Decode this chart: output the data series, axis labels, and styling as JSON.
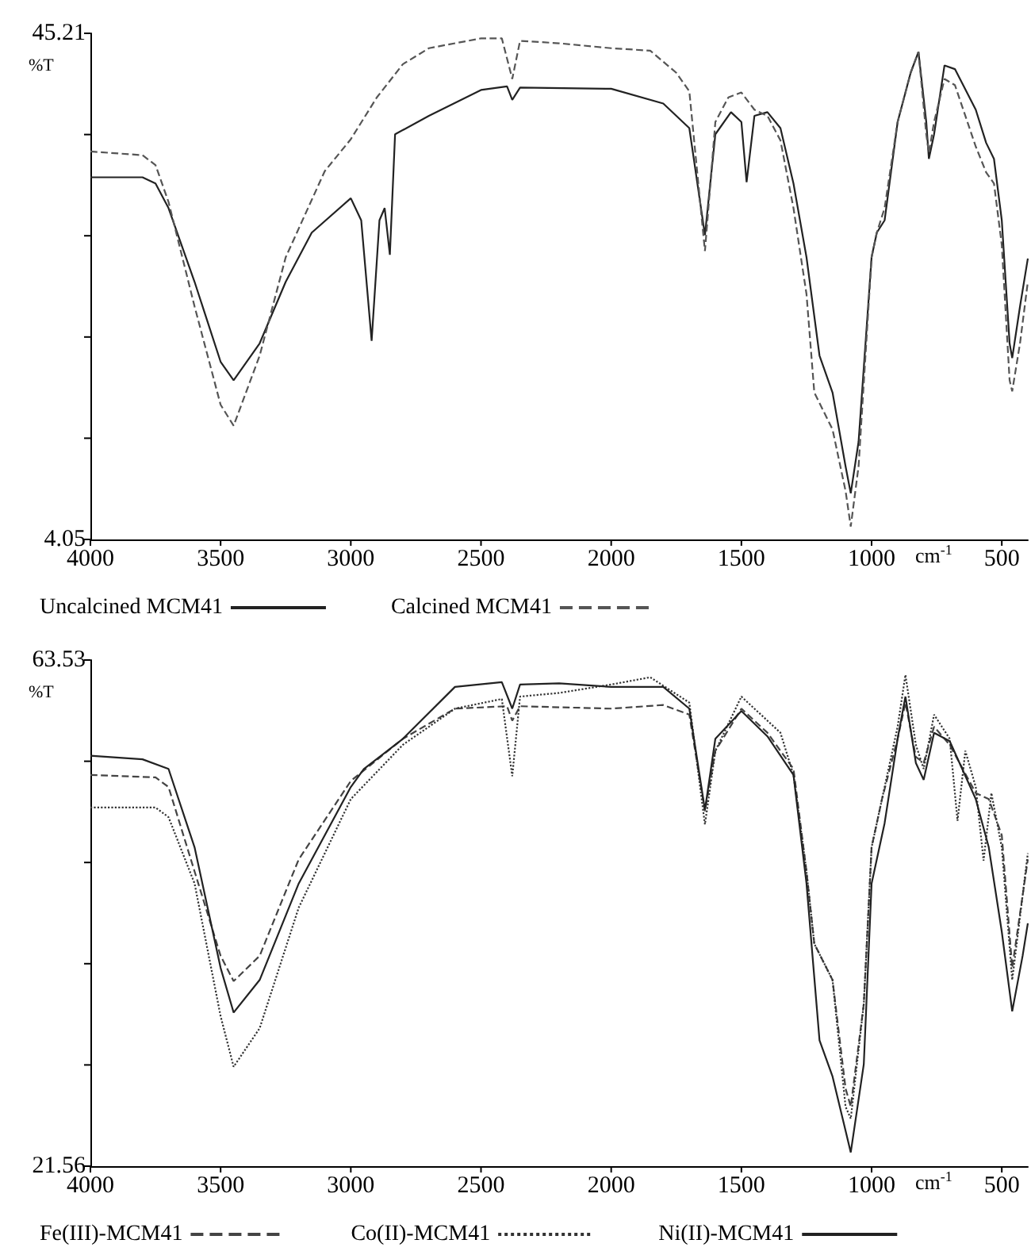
{
  "chart_data": [
    {
      "type": "line",
      "xlabel": "cm$^{-1}$",
      "ylabel": "%T",
      "xlim": [
        4000,
        400
      ],
      "ylim": [
        4.05,
        45.21
      ],
      "xticks": [
        4000,
        3500,
        3000,
        2500,
        2000,
        1500,
        1000,
        500
      ],
      "yticks": [
        4.05,
        {
          "value": 12.282,
          "label": null
        },
        {
          "value": 20.514,
          "label": null
        },
        {
          "value": 28.746,
          "label": null
        },
        {
          "value": 36.978,
          "label": null
        },
        45.21
      ],
      "grid": false,
      "legend": "bottom",
      "marker": "none",
      "series": [
        {
          "name": "Uncalcined MCM41",
          "color": "#222222",
          "line_style": "solid",
          "x": [
            4000,
            3800,
            3750,
            3700,
            3600,
            3500,
            3450,
            3350,
            3250,
            3150,
            3000,
            2960,
            2920,
            2890,
            2870,
            2850,
            2830,
            2700,
            2500,
            2400,
            2380,
            2350,
            2000,
            1800,
            1700,
            1640,
            1600,
            1540,
            1500,
            1480,
            1450,
            1400,
            1350,
            1300,
            1250,
            1200,
            1150,
            1100,
            1080,
            1050,
            1000,
            980,
            950,
            900,
            850,
            820,
            790,
            780,
            760,
            720,
            680,
            600,
            560,
            530,
            500,
            470,
            460,
            430,
            400
          ],
          "values": [
            33.5,
            33.5,
            33.0,
            31,
            25,
            18.5,
            17.0,
            20,
            25,
            29,
            31.8,
            30,
            20.2,
            30,
            31,
            27.2,
            37,
            38.5,
            40.6,
            40.9,
            39.8,
            40.8,
            40.7,
            39.5,
            37.5,
            28.8,
            37,
            38.8,
            38,
            33.1,
            38.5,
            38.8,
            37.5,
            33,
            27,
            19,
            16,
            10,
            7.8,
            12,
            27,
            29,
            30,
            38,
            42,
            43.7,
            38,
            35.0,
            37,
            42.6,
            42.3,
            39,
            36.3,
            35,
            30,
            20,
            18.8,
            23,
            26.9
          ]
        },
        {
          "name": "Calcined MCM41",
          "color": "#555555",
          "line_style": "dashed",
          "x": [
            4000,
            3800,
            3750,
            3700,
            3600,
            3500,
            3450,
            3350,
            3250,
            3100,
            3000,
            2900,
            2800,
            2700,
            2500,
            2420,
            2380,
            2350,
            2200,
            2000,
            1850,
            1750,
            1700,
            1640,
            1600,
            1550,
            1500,
            1450,
            1400,
            1350,
            1300,
            1250,
            1220,
            1150,
            1100,
            1080,
            1050,
            1000,
            980,
            950,
            900,
            850,
            820,
            790,
            780,
            760,
            720,
            680,
            600,
            560,
            530,
            500,
            470,
            460,
            430,
            400
          ],
          "values": [
            35.6,
            35.3,
            34.5,
            31.5,
            23,
            15,
            13.3,
            19,
            27,
            34,
            36.6,
            40,
            42.7,
            44,
            44.8,
            44.8,
            41.5,
            44.6,
            44.4,
            44.0,
            43.8,
            42,
            40.5,
            27.5,
            38,
            40,
            40.4,
            39,
            38.5,
            36.5,
            31,
            24,
            16,
            13,
            8,
            5.1,
            10,
            27,
            29,
            31,
            38,
            42,
            43.7,
            37,
            35.5,
            38,
            41.5,
            41,
            36,
            33.9,
            33,
            28,
            17,
            16.1,
            20,
            25
          ]
        }
      ]
    },
    {
      "type": "line",
      "xlabel": "cm$^{-1}$",
      "ylabel": "%T",
      "xlim": [
        4000,
        400
      ],
      "ylim": [
        21.56,
        63.53
      ],
      "xticks": [
        4000,
        3500,
        3000,
        2500,
        2000,
        1500,
        1000,
        500
      ],
      "yticks": [
        21.56,
        {
          "value": 29.954,
          "label": null
        },
        {
          "value": 38.348,
          "label": null
        },
        {
          "value": 46.742,
          "label": null
        },
        {
          "value": 55.136,
          "label": null
        },
        63.53
      ],
      "grid": false,
      "legend": "bottom",
      "marker": "none",
      "series": [
        {
          "name": "Fe(III)-MCM41",
          "color": "#444444",
          "line_style": "dashed",
          "x": [
            4000,
            3750,
            3700,
            3600,
            3500,
            3450,
            3350,
            3200,
            3000,
            2800,
            2600,
            2400,
            2380,
            2350,
            2000,
            1800,
            1700,
            1640,
            1600,
            1500,
            1400,
            1300,
            1250,
            1220,
            1150,
            1100,
            1080,
            1030,
            1000,
            960,
            900,
            870,
            830,
            800,
            760,
            700,
            600,
            550,
            500,
            460,
            420,
            400
          ],
          "values": [
            54.0,
            53.8,
            53,
            46,
            39,
            36.9,
            39,
            47,
            53.5,
            57,
            59.5,
            59.7,
            58.5,
            59.7,
            59.5,
            59.8,
            59,
            51.0,
            56,
            59.5,
            57.5,
            54.5,
            46,
            40,
            37,
            28,
            26.5,
            35,
            48,
            52,
            57,
            60,
            55.5,
            55,
            58,
            56.5,
            52.5,
            52,
            49,
            38,
            44,
            47
          ]
        },
        {
          "name": "Co(II)-MCM41",
          "color": "#333333",
          "line_style": "dotted",
          "x": [
            4000,
            3750,
            3700,
            3600,
            3500,
            3450,
            3350,
            3200,
            3000,
            2800,
            2600,
            2420,
            2380,
            2350,
            2200,
            2000,
            1850,
            1700,
            1640,
            1600,
            1500,
            1400,
            1350,
            1300,
            1250,
            1220,
            1150,
            1100,
            1080,
            1030,
            1000,
            960,
            900,
            870,
            830,
            800,
            760,
            700,
            670,
            640,
            600,
            570,
            540,
            500,
            460,
            420,
            400
          ],
          "values": [
            51.3,
            51.3,
            50.5,
            45,
            34,
            29.8,
            33,
            43,
            52,
            56.5,
            59.5,
            60.3,
            53.9,
            60.5,
            60.8,
            61.5,
            62.1,
            60,
            49.9,
            56,
            60.5,
            58.5,
            57.5,
            54,
            46,
            40,
            37,
            26.5,
            25.5,
            35,
            48,
            52,
            58,
            62.3,
            56.5,
            54.5,
            59,
            57,
            50.2,
            56,
            53,
            46.9,
            52.5,
            48,
            37,
            44,
            47.5
          ]
        },
        {
          "name": "Ni(II)-MCM41",
          "color": "#222222",
          "line_style": "solid",
          "x": [
            4000,
            3800,
            3700,
            3600,
            3500,
            3450,
            3350,
            3200,
            3000,
            2950,
            2800,
            2600,
            2420,
            2380,
            2350,
            2200,
            2000,
            1800,
            1700,
            1640,
            1600,
            1500,
            1400,
            1300,
            1250,
            1200,
            1150,
            1100,
            1080,
            1030,
            1000,
            950,
            900,
            870,
            830,
            800,
            760,
            700,
            600,
            550,
            500,
            460,
            420,
            400
          ],
          "values": [
            55.6,
            55.3,
            54.5,
            48,
            38,
            34.3,
            37,
            45,
            53,
            54.5,
            57,
            61.3,
            61.7,
            59.5,
            61.5,
            61.6,
            61.3,
            61.3,
            59.5,
            51.1,
            57,
            59.3,
            57.2,
            54,
            45,
            32,
            29,
            24.5,
            22.7,
            30,
            45,
            50,
            57,
            60.5,
            55,
            53.6,
            57.5,
            56.8,
            52,
            48,
            41,
            34.4,
            39,
            41.7
          ]
        }
      ]
    }
  ]
}
